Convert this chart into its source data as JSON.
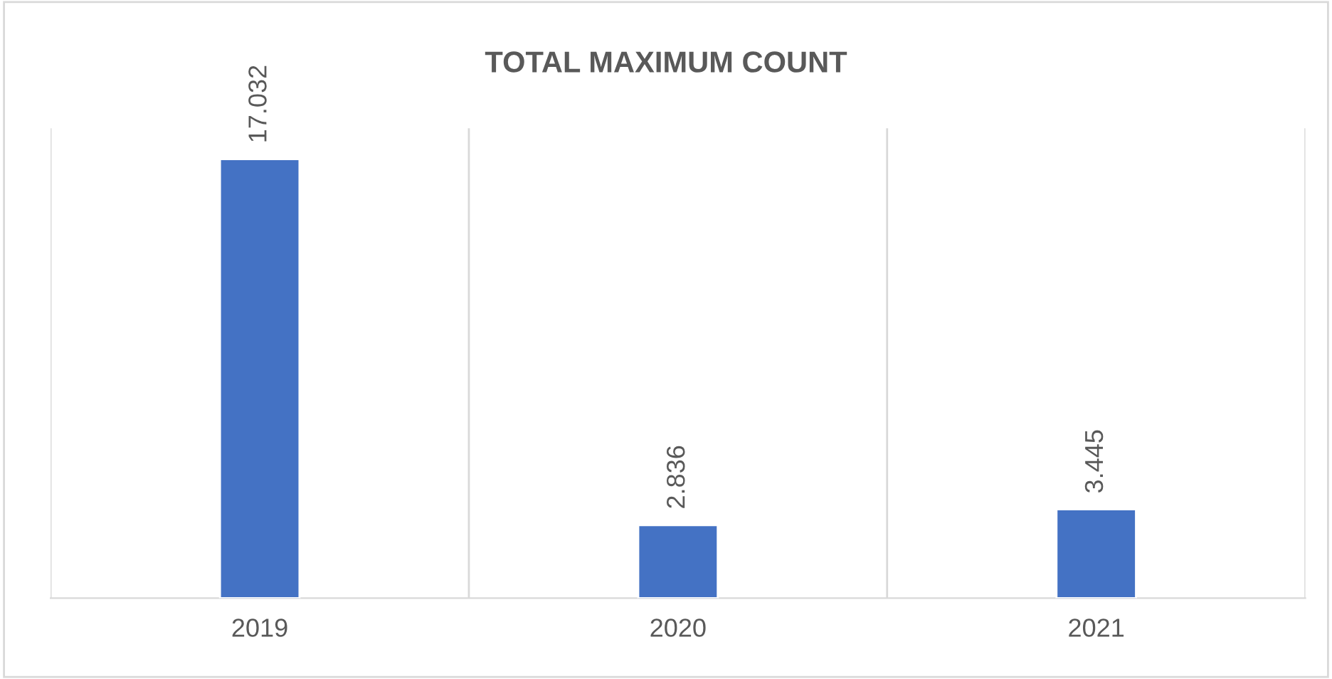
{
  "chart_data": {
    "type": "bar",
    "title": "TOTAL MAXIMUM COUNT",
    "categories": [
      "2019",
      "2020",
      "2021"
    ],
    "values": [
      17.032,
      2.836,
      3.445
    ],
    "color": "#4472c4",
    "data_labels": true,
    "grid": "x",
    "legend": false
  }
}
